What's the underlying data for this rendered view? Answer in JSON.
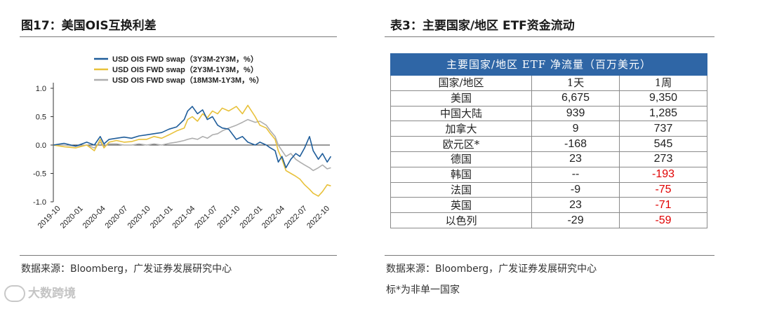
{
  "left_panel": {
    "title": "图17：美国OIS互换利差",
    "source": "数据来源：Bloomberg，广发证券发展研究中心"
  },
  "right_panel": {
    "title": "表3：主要国家/地区 ETF资金流动",
    "source": "数据来源：Bloomberg，广发证券发展研究中心",
    "note": "标*为非单一国家",
    "table": {
      "banner": "主要国家/地区 ETF 净流量（百万美元）",
      "headers": [
        "国家/地区",
        "1天",
        "1周"
      ],
      "rows": [
        {
          "region": "美国",
          "day": "6,675",
          "week": "9,350",
          "week_negative": false
        },
        {
          "region": "中国大陆",
          "day": "939",
          "week": "1,285",
          "week_negative": false
        },
        {
          "region": "加拿大",
          "day": "9",
          "week": "737",
          "week_negative": false
        },
        {
          "region": "欧元区*",
          "day": "-168",
          "week": "545",
          "week_negative": false
        },
        {
          "region": "德国",
          "day": "23",
          "week": "273",
          "week_negative": false
        },
        {
          "region": "韩国",
          "day": "--",
          "week": "-193",
          "week_negative": true
        },
        {
          "region": "法国",
          "day": "-9",
          "week": "-75",
          "week_negative": true
        },
        {
          "region": "英国",
          "day": "23",
          "week": "-71",
          "week_negative": true
        },
        {
          "region": "以色列",
          "day": "-29",
          "week": "-59",
          "week_negative": true
        }
      ]
    }
  },
  "watermark": {
    "text": "大数跨境",
    "icon": "brand-logo-icon"
  },
  "chart_data": {
    "type": "line",
    "title": "",
    "xlabel": "",
    "ylabel": "",
    "ylim": [
      -1.0,
      1.0
    ],
    "yticks": [
      1.0,
      0.5,
      0.0,
      -0.5,
      -1.0
    ],
    "ytick_labels": [
      "1.0",
      "0.5",
      "0.0",
      "-0.5",
      "-1.0"
    ],
    "x_range": [
      "2019-09",
      "2022-10"
    ],
    "xtick_labels": [
      "2019-10",
      "2020-01",
      "2020-04",
      "2020-07",
      "2020-10",
      "2021-01",
      "2021-04",
      "2021-07",
      "2021-10",
      "2022-01",
      "2022-04",
      "2022-07",
      "2022-10"
    ],
    "grid": false,
    "legend_position": "top",
    "series": [
      {
        "name": "USD OIS FWD swap（3Y3M-2Y3M，%）",
        "color": "#1f5d9a",
        "points": [
          [
            "2019-09-01",
            0.0
          ],
          [
            "2019-10-15",
            0.03
          ],
          [
            "2019-12-01",
            -0.02
          ],
          [
            "2020-01-15",
            0.05
          ],
          [
            "2020-02-15",
            0.0
          ],
          [
            "2020-03-10",
            0.15
          ],
          [
            "2020-03-25",
            0.02
          ],
          [
            "2020-04-15",
            0.1
          ],
          [
            "2020-05-15",
            0.12
          ],
          [
            "2020-06-15",
            0.14
          ],
          [
            "2020-07-15",
            0.12
          ],
          [
            "2020-08-15",
            0.16
          ],
          [
            "2020-09-15",
            0.18
          ],
          [
            "2020-10-15",
            0.2
          ],
          [
            "2020-11-15",
            0.22
          ],
          [
            "2020-12-15",
            0.28
          ],
          [
            "2021-01-15",
            0.32
          ],
          [
            "2021-02-15",
            0.45
          ],
          [
            "2021-03-01",
            0.6
          ],
          [
            "2021-03-20",
            0.68
          ],
          [
            "2021-04-10",
            0.55
          ],
          [
            "2021-05-01",
            0.62
          ],
          [
            "2021-05-20",
            0.45
          ],
          [
            "2021-06-10",
            0.5
          ],
          [
            "2021-07-01",
            0.35
          ],
          [
            "2021-07-20",
            0.3
          ],
          [
            "2021-08-15",
            0.28
          ],
          [
            "2021-09-15",
            0.1
          ],
          [
            "2021-10-10",
            0.15
          ],
          [
            "2021-11-01",
            0.05
          ],
          [
            "2021-12-01",
            0.0
          ],
          [
            "2021-12-20",
            0.05
          ],
          [
            "2022-01-15",
            0.0
          ],
          [
            "2022-02-01",
            -0.05
          ],
          [
            "2022-02-20",
            -0.1
          ],
          [
            "2022-03-05",
            -0.3
          ],
          [
            "2022-03-20",
            -0.2
          ],
          [
            "2022-04-05",
            -0.4
          ],
          [
            "2022-04-25",
            -0.25
          ],
          [
            "2022-05-15",
            -0.15
          ],
          [
            "2022-06-01",
            -0.2
          ],
          [
            "2022-06-20",
            -0.05
          ],
          [
            "2022-07-10",
            0.15
          ],
          [
            "2022-07-25",
            -0.1
          ],
          [
            "2022-08-15",
            -0.25
          ],
          [
            "2022-09-01",
            -0.15
          ],
          [
            "2022-09-20",
            -0.3
          ],
          [
            "2022-10-05",
            -0.2
          ]
        ]
      },
      {
        "name": "USD OIS FWD swap（2Y3M-1Y3M，%）",
        "color": "#e8c13a",
        "points": [
          [
            "2019-09-01",
            0.0
          ],
          [
            "2019-10-15",
            -0.03
          ],
          [
            "2019-12-01",
            -0.05
          ],
          [
            "2020-01-15",
            0.0
          ],
          [
            "2020-02-15",
            -0.1
          ],
          [
            "2020-03-10",
            0.1
          ],
          [
            "2020-03-25",
            -0.05
          ],
          [
            "2020-04-15",
            0.05
          ],
          [
            "2020-05-15",
            0.08
          ],
          [
            "2020-06-15",
            0.05
          ],
          [
            "2020-07-15",
            0.06
          ],
          [
            "2020-08-15",
            0.1
          ],
          [
            "2020-09-15",
            0.1
          ],
          [
            "2020-10-15",
            0.15
          ],
          [
            "2020-11-15",
            0.12
          ],
          [
            "2020-12-15",
            0.18
          ],
          [
            "2021-01-15",
            0.25
          ],
          [
            "2021-02-15",
            0.3
          ],
          [
            "2021-03-01",
            0.45
          ],
          [
            "2021-03-20",
            0.5
          ],
          [
            "2021-04-10",
            0.42
          ],
          [
            "2021-05-01",
            0.55
          ],
          [
            "2021-05-20",
            0.48
          ],
          [
            "2021-06-10",
            0.6
          ],
          [
            "2021-07-01",
            0.55
          ],
          [
            "2021-07-20",
            0.65
          ],
          [
            "2021-08-15",
            0.6
          ],
          [
            "2021-09-15",
            0.68
          ],
          [
            "2021-10-10",
            0.55
          ],
          [
            "2021-11-01",
            0.7
          ],
          [
            "2021-12-01",
            0.5
          ],
          [
            "2021-12-20",
            0.35
          ],
          [
            "2022-01-15",
            0.3
          ],
          [
            "2022-02-01",
            0.2
          ],
          [
            "2022-02-20",
            0.1
          ],
          [
            "2022-03-05",
            -0.1
          ],
          [
            "2022-03-20",
            -0.25
          ],
          [
            "2022-04-05",
            -0.45
          ],
          [
            "2022-04-25",
            -0.5
          ],
          [
            "2022-05-15",
            -0.55
          ],
          [
            "2022-06-01",
            -0.6
          ],
          [
            "2022-06-20",
            -0.7
          ],
          [
            "2022-07-10",
            -0.78
          ],
          [
            "2022-07-25",
            -0.85
          ],
          [
            "2022-08-15",
            -0.9
          ],
          [
            "2022-09-01",
            -0.82
          ],
          [
            "2022-09-20",
            -0.7
          ],
          [
            "2022-10-05",
            -0.72
          ]
        ]
      },
      {
        "name": "USD OIS FWD swap（18M3M-1Y3M，%）",
        "color": "#aeaeae",
        "points": [
          [
            "2019-09-01",
            0.0
          ],
          [
            "2019-10-15",
            0.0
          ],
          [
            "2019-12-01",
            -0.02
          ],
          [
            "2020-01-15",
            0.0
          ],
          [
            "2020-02-15",
            -0.05
          ],
          [
            "2020-03-10",
            0.05
          ],
          [
            "2020-03-25",
            -0.02
          ],
          [
            "2020-04-15",
            0.02
          ],
          [
            "2020-05-15",
            0.02
          ],
          [
            "2020-06-15",
            0.0
          ],
          [
            "2020-07-15",
            0.0
          ],
          [
            "2020-08-15",
            0.02
          ],
          [
            "2020-09-15",
            0.0
          ],
          [
            "2020-10-15",
            0.02
          ],
          [
            "2020-11-15",
            0.0
          ],
          [
            "2020-12-15",
            0.03
          ],
          [
            "2021-01-15",
            0.05
          ],
          [
            "2021-02-15",
            0.08
          ],
          [
            "2021-03-01",
            0.1
          ],
          [
            "2021-03-20",
            0.12
          ],
          [
            "2021-04-10",
            0.1
          ],
          [
            "2021-05-01",
            0.15
          ],
          [
            "2021-05-20",
            0.12
          ],
          [
            "2021-06-10",
            0.18
          ],
          [
            "2021-07-01",
            0.2
          ],
          [
            "2021-07-20",
            0.25
          ],
          [
            "2021-08-15",
            0.3
          ],
          [
            "2021-09-15",
            0.35
          ],
          [
            "2021-10-10",
            0.4
          ],
          [
            "2021-11-01",
            0.45
          ],
          [
            "2021-12-01",
            0.4
          ],
          [
            "2021-12-20",
            0.42
          ],
          [
            "2022-01-15",
            0.35
          ],
          [
            "2022-02-01",
            0.25
          ],
          [
            "2022-02-20",
            0.15
          ],
          [
            "2022-03-05",
            0.0
          ],
          [
            "2022-03-20",
            -0.1
          ],
          [
            "2022-04-05",
            -0.2
          ],
          [
            "2022-04-25",
            -0.15
          ],
          [
            "2022-05-15",
            -0.25
          ],
          [
            "2022-06-01",
            -0.3
          ],
          [
            "2022-06-20",
            -0.35
          ],
          [
            "2022-07-10",
            -0.4
          ],
          [
            "2022-07-25",
            -0.45
          ],
          [
            "2022-08-15",
            -0.4
          ],
          [
            "2022-09-01",
            -0.35
          ],
          [
            "2022-09-20",
            -0.42
          ],
          [
            "2022-10-05",
            -0.4
          ]
        ]
      }
    ]
  }
}
